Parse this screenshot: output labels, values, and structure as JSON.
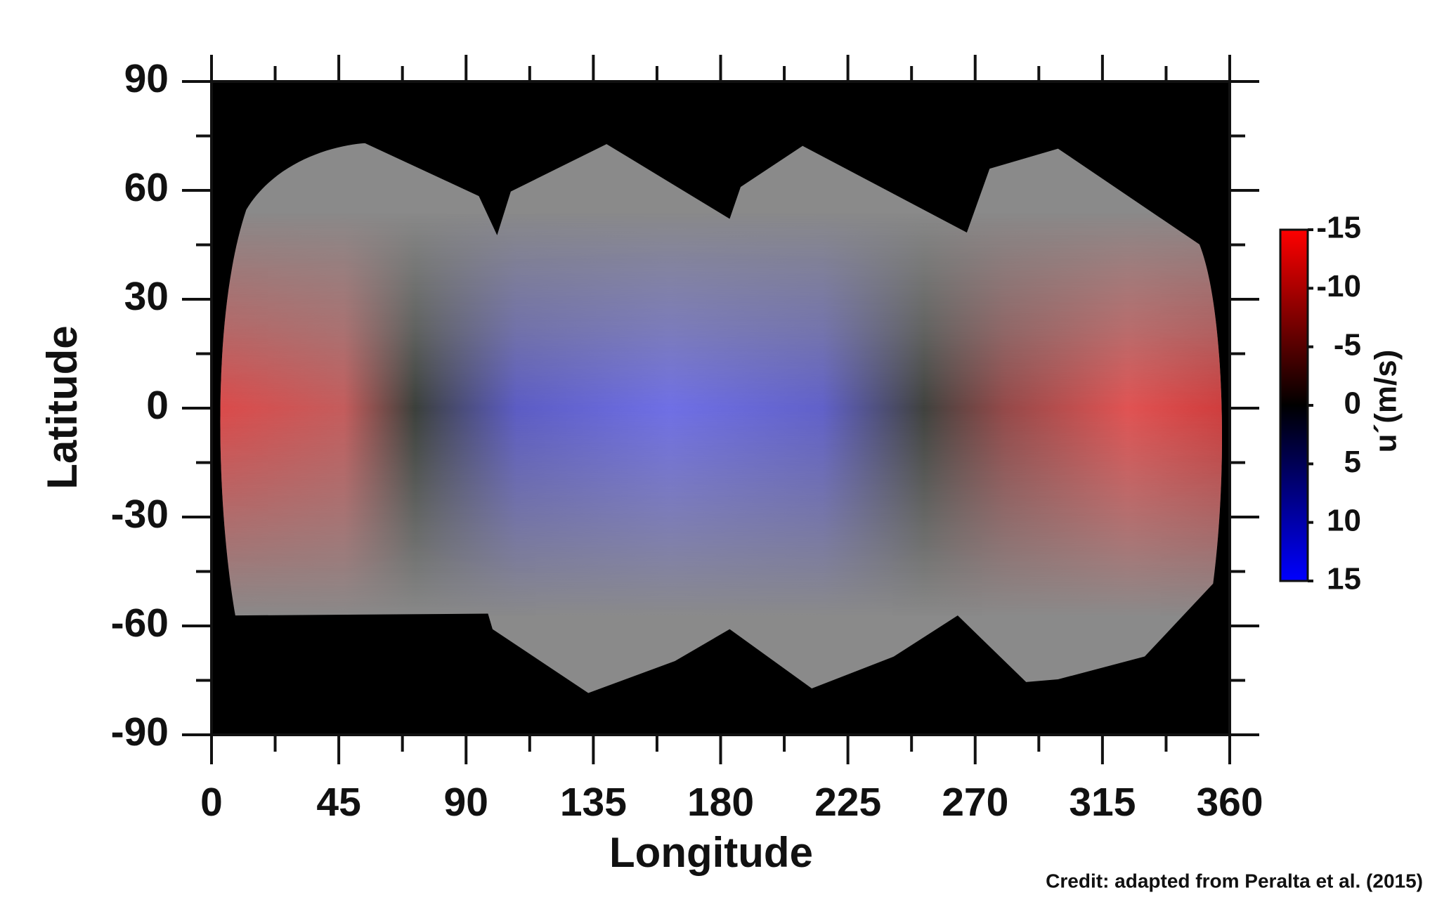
{
  "chart_data": {
    "type": "heatmap",
    "xlabel": "Longitude",
    "ylabel": "Latitude",
    "xlim": [
      0,
      360
    ],
    "xticks": [
      0,
      45,
      90,
      135,
      180,
      225,
      270,
      315,
      360
    ],
    "ylim": [
      -90,
      90
    ],
    "yticks": [
      -90,
      -60,
      -30,
      0,
      30,
      60,
      90
    ],
    "colorbar": {
      "label": "u´(m/s)",
      "lim": [
        -15,
        15
      ],
      "ticks": [
        -15,
        -10,
        -5,
        0,
        5,
        10,
        15
      ],
      "colors": [
        "#ff0000",
        "#000000",
        "#0000ff"
      ]
    }
  },
  "credit": "Credit: adapted from Peralta et al. (2015)"
}
